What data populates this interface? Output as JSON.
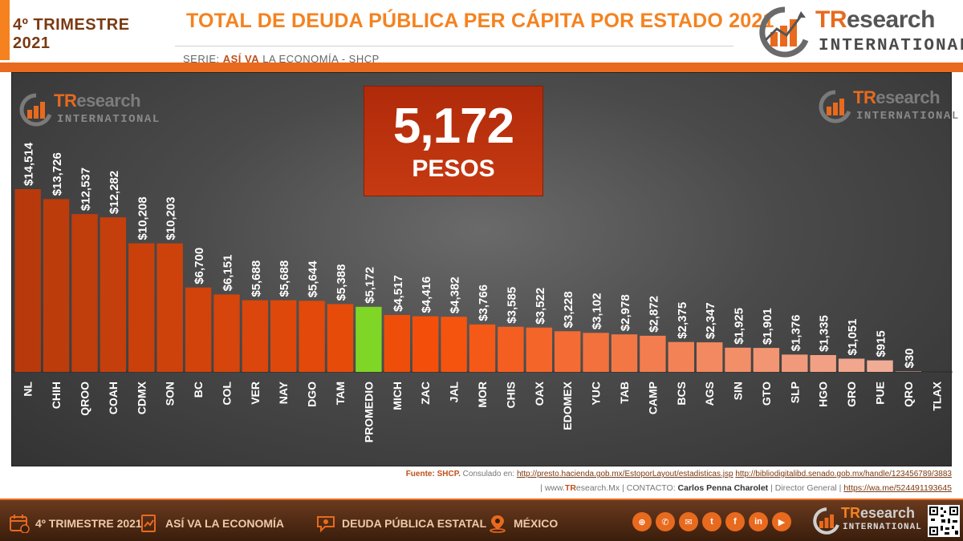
{
  "header": {
    "quarter": "4º TRIMESTRE  2021",
    "title": "TOTAL DE DEUDA PÚBLICA PER CÁPITA POR ESTADO 2021",
    "series_prefix": "SERIE:",
    "series_highlight": "ASÍ  VA",
    "series_suffix": "LA ECONOMÍA - SHCP"
  },
  "logo": {
    "tr": "TR",
    "research": "esearch",
    "international": "INTERNATIONAL"
  },
  "average_box": {
    "value": "5,172",
    "unit": "PESOS"
  },
  "chart_data": {
    "type": "bar",
    "title": "TOTAL DE DEUDA PÚBLICA PER CÁPITA POR ESTADO 2021",
    "categories": [
      "NL",
      "CHIH",
      "QROO",
      "COAH",
      "CDMX",
      "SON",
      "BC",
      "COL",
      "VER",
      "NAY",
      "DGO",
      "TAM",
      "PROMEDIO",
      "MICH",
      "ZAC",
      "JAL",
      "MOR",
      "CHIS",
      "OAX",
      "EDOMEX",
      "YUC",
      "TAB",
      "CAMP",
      "BCS",
      "AGS",
      "SIN",
      "GTO",
      "SLP",
      "HGO",
      "GRO",
      "PUE",
      "QRO",
      "TLAX"
    ],
    "values": [
      14514,
      13726,
      12537,
      12282,
      10208,
      10203,
      6700,
      6151,
      5688,
      5688,
      5644,
      5388,
      5172,
      4517,
      4416,
      4382,
      3766,
      3585,
      3522,
      3228,
      3102,
      2978,
      2872,
      2375,
      2347,
      1925,
      1901,
      1376,
      1335,
      1051,
      915,
      30,
      0
    ],
    "value_labels": [
      "$14,514",
      "$13,726",
      "$12,537",
      "$12,282",
      "$10,208",
      "$10,203",
      "$6,700",
      "$6,151",
      "$5,688",
      "$5,688",
      "$5,644",
      "$5,388",
      "$5,172",
      "$4,517",
      "$4,416",
      "$4,382",
      "$3,766",
      "$3,585",
      "$3,522",
      "$3,228",
      "$3,102",
      "$2,978",
      "$2,872",
      "$2,375",
      "$2,347",
      "$1,925",
      "$1,901",
      "$1,376",
      "$1,335",
      "$1,051",
      "$915",
      "$30",
      ""
    ],
    "highlight_category": "PROMEDIO",
    "highlight_color": "#7fd626",
    "gradient_start_color": "#b83a0c",
    "gradient_mid_color": "#f5500a",
    "gradient_end_color": "#f0b8a8",
    "ylim": [
      0,
      16000
    ],
    "grid": false,
    "legend": "none"
  },
  "source": {
    "label": "Fuente:",
    "name": "SHCP.",
    "consulted": "Consulado en:",
    "link1": "http://presto.hacienda.gob.mx/EstoporLayout/estadisticas.jsp",
    "link2": "http://bibliodigitalibd.senado.gob.mx/handle/123456789/3883"
  },
  "credits": {
    "web_prefix": "| www.",
    "web_tr": "TR",
    "web_suffix": "esearch.Mx",
    "contact_label": "| CONTACTO:",
    "contact_name": "Carlos Penna Charolet",
    "role": "| Director General |",
    "wa_link": "https://wa.me/524491193645"
  },
  "footer": {
    "quarter": "4º TRIMESTRE  2021",
    "series": "ASÍ VA LA ECONOMÍA",
    "topic": "DEUDA PÚBLICA ESTATAL",
    "country": "MÉXICO",
    "icons": [
      "calendar-icon",
      "report-icon",
      "chat-icon",
      "map-pin-icon"
    ],
    "social": [
      "globe-icon",
      "phone-icon",
      "mail-icon",
      "twitter-icon",
      "facebook-icon",
      "linkedin-icon",
      "youtube-icon"
    ],
    "social_glyphs": [
      "⊕",
      "✆",
      "✉",
      "t",
      "f",
      "in",
      "▶"
    ]
  }
}
